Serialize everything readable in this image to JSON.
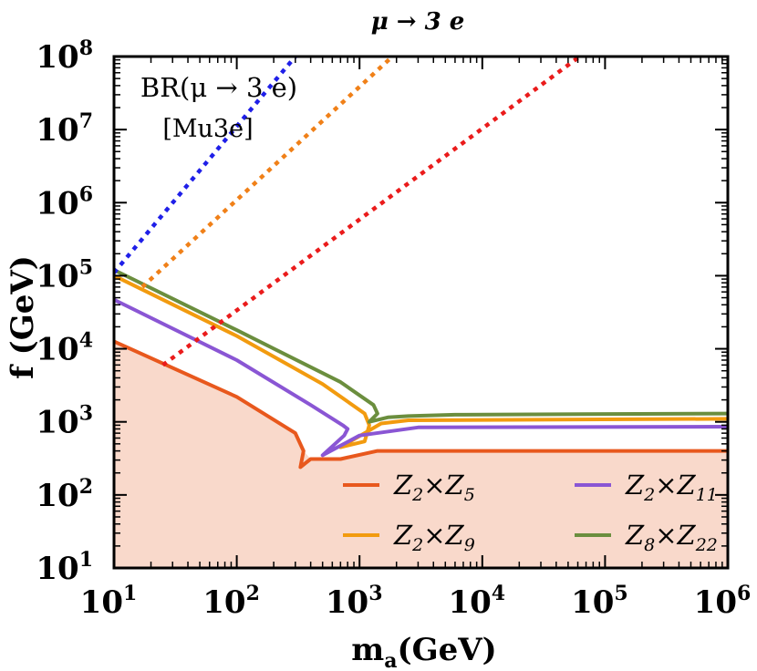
{
  "chart_data": {
    "type": "line",
    "title": "μ → 3 e",
    "xlabel": "m",
    "xlabel_sub": "a",
    "xlabel_unit": "(GeV)",
    "ylabel": "f (GeV)",
    "x_scale": "log",
    "y_scale": "log",
    "xlim": [
      10,
      1000000
    ],
    "ylim": [
      10,
      100000000
    ],
    "x_ticks": [
      {
        "value": 10,
        "base": "10",
        "exp": "1"
      },
      {
        "value": 100,
        "base": "10",
        "exp": "2"
      },
      {
        "value": 1000,
        "base": "10",
        "exp": "3"
      },
      {
        "value": 10000,
        "base": "10",
        "exp": "4"
      },
      {
        "value": 100000,
        "base": "10",
        "exp": "5"
      },
      {
        "value": 1000000,
        "base": "10",
        "exp": "6"
      }
    ],
    "y_ticks": [
      {
        "value": 10,
        "base": "10",
        "exp": "1"
      },
      {
        "value": 100,
        "base": "10",
        "exp": "2"
      },
      {
        "value": 1000,
        "base": "10",
        "exp": "3"
      },
      {
        "value": 10000,
        "base": "10",
        "exp": "4"
      },
      {
        "value": 100000,
        "base": "10",
        "exp": "5"
      },
      {
        "value": 1000000,
        "base": "10",
        "exp": "6"
      },
      {
        "value": 10000000,
        "base": "10",
        "exp": "7"
      },
      {
        "value": 100000000,
        "base": "10",
        "exp": "8"
      }
    ],
    "annotation": {
      "line1": "BR(μ → 3 e)",
      "line2": "[Mu3e]"
    },
    "shaded_region": {
      "color": "#f9d9cb",
      "boundary": [
        [
          10,
          12600
        ],
        [
          100,
          2200
        ],
        [
          300,
          700
        ],
        [
          350,
          400
        ],
        [
          400,
          310
        ],
        [
          700,
          310
        ],
        [
          1400,
          400
        ],
        [
          1000000,
          400
        ]
      ]
    },
    "series": [
      {
        "name": "Z₂×Z₅",
        "color": "#e8581d",
        "style": "solid",
        "x": [
          10,
          100,
          300,
          350,
          330,
          400,
          700,
          1400,
          5000,
          1000000
        ],
        "y": [
          12600,
          2200,
          700,
          400,
          240,
          310,
          310,
          400,
          400,
          400
        ]
      },
      {
        "name": "Z₂×Z₉",
        "color": "#f29b0f",
        "style": "solid",
        "x": [
          10,
          100,
          500,
          1100,
          1200,
          1100,
          700,
          1500,
          2500,
          1000000
        ],
        "y": [
          100000,
          15000,
          3300,
          1300,
          900,
          540,
          450,
          950,
          1050,
          1100
        ]
      },
      {
        "name": "Z₂×Z₁₁",
        "color": "#8a56d4",
        "style": "solid",
        "x": [
          10,
          100,
          400,
          730,
          800,
          750,
          500,
          1000,
          3000,
          1000000
        ],
        "y": [
          47000,
          7000,
          1700,
          900,
          800,
          650,
          350,
          650,
          840,
          860
        ]
      },
      {
        "name": "Z₈×Z₂₂",
        "color": "#6b8e3e",
        "style": "solid",
        "x": [
          10,
          100,
          700,
          1300,
          1400,
          1200,
          1700,
          2500,
          6000,
          1000000
        ],
        "y": [
          120000,
          18000,
          3500,
          1700,
          1300,
          1000,
          1150,
          1200,
          1250,
          1300
        ]
      },
      {
        "color": "#1f1fe8",
        "style": "dotted",
        "x": [
          10,
          300
        ],
        "y": [
          110000,
          100000000
        ]
      },
      {
        "color": "#f08018",
        "style": "dotted",
        "x": [
          17,
          1850
        ],
        "y": [
          70000,
          100000000
        ]
      },
      {
        "color": "#ea1b1b",
        "style": "dotted",
        "x": [
          25,
          62000
        ],
        "y": [
          6000,
          100000000
        ]
      }
    ],
    "legend": {
      "placement": "bottom-right",
      "entries": [
        {
          "label": "Z",
          "sub1": "2",
          "mid": "×Z",
          "sub2": "5",
          "color": "#e8581d"
        },
        {
          "label": "Z",
          "sub1": "2",
          "mid": "×Z",
          "sub2": "11",
          "color": "#8a56d4"
        },
        {
          "label": "Z",
          "sub1": "2",
          "mid": "×Z",
          "sub2": "9",
          "color": "#f29b0f"
        },
        {
          "label": "Z",
          "sub1": "8",
          "mid": "×Z",
          "sub2": "22",
          "color": "#6b8e3e"
        }
      ]
    },
    "grid": false
  }
}
